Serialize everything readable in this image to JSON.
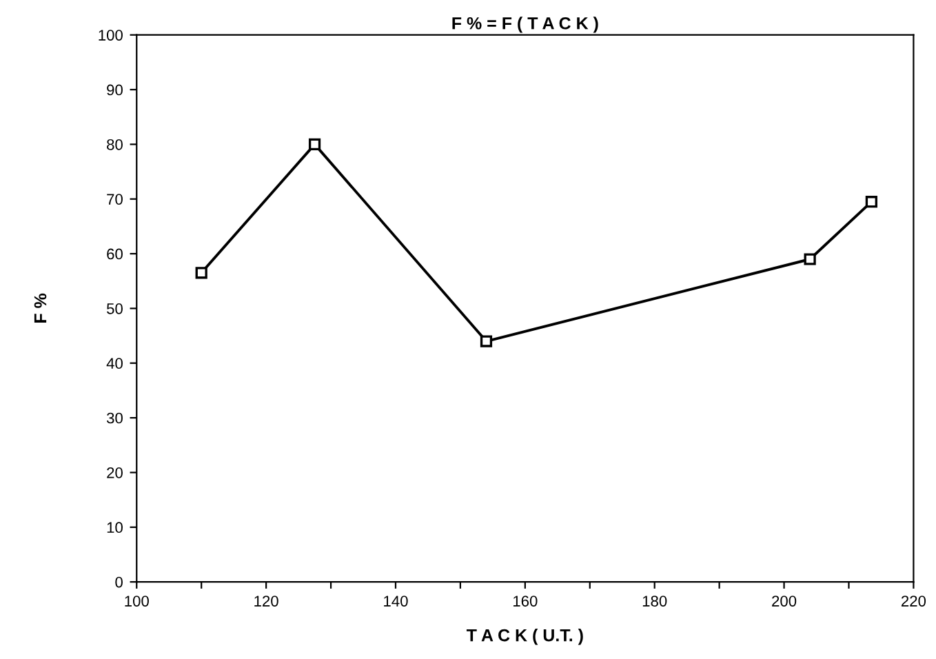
{
  "chart_data": {
    "type": "line",
    "title": "F % = F ( T A C K )",
    "xlabel": "T A C K ( U.T. )",
    "ylabel": "F %",
    "x": [
      110,
      127.5,
      154,
      204,
      213.5
    ],
    "series": [
      {
        "color": "#000000",
        "values": [
          56.5,
          80,
          44,
          59,
          69.5
        ]
      }
    ],
    "marker": "square",
    "line_style": "solid",
    "grid": false,
    "legend": false,
    "xlim": [
      100,
      220
    ],
    "xticks": [
      100,
      {
        "value": 110,
        "label": null
      },
      120,
      {
        "value": 130,
        "label": null
      },
      140,
      {
        "value": 150,
        "label": null
      },
      160,
      {
        "value": 170,
        "label": null
      },
      180,
      {
        "value": 190,
        "label": null
      },
      200,
      {
        "value": 210,
        "label": null
      },
      220
    ],
    "ylim": [
      0,
      100
    ],
    "yticks": [
      0,
      10,
      20,
      30,
      40,
      50,
      60,
      70,
      80,
      90,
      100
    ]
  }
}
